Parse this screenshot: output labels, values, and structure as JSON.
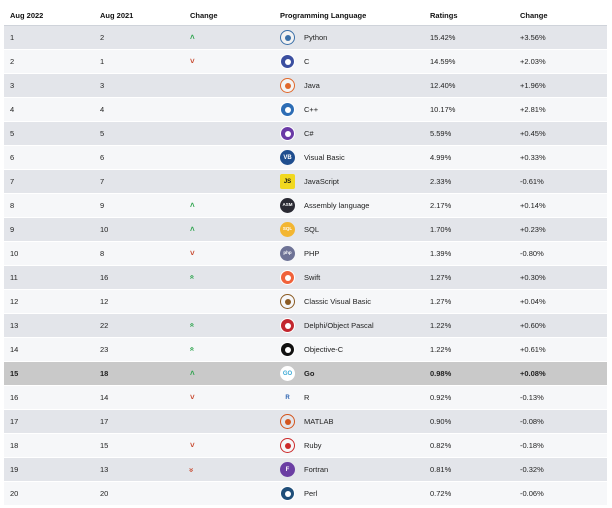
{
  "headers": {
    "aug2022": "Aug 2022",
    "aug2021": "Aug 2021",
    "change": "Change",
    "language": "Programming Language",
    "ratings": "Ratings",
    "change_pct": "Change"
  },
  "rows": [
    {
      "rank2022": "1",
      "rank2021": "2",
      "arrow": "up",
      "language": "Python",
      "rating": "15.42%",
      "delta": "+3.56%",
      "icon": "python-logo-icon",
      "logo_bg": "#f2f2f2",
      "logo_fg": "#3a6fa8",
      "logo_text": ""
    },
    {
      "rank2022": "2",
      "rank2021": "1",
      "arrow": "down",
      "language": "C",
      "rating": "14.59%",
      "delta": "+2.03%",
      "icon": "c-logo-icon",
      "logo_bg": "#3b4fa0",
      "logo_fg": "#ffffff",
      "logo_text": ""
    },
    {
      "rank2022": "3",
      "rank2021": "3",
      "arrow": "",
      "language": "Java",
      "rating": "12.40%",
      "delta": "+1.96%",
      "icon": "java-logo-icon",
      "logo_bg": "#f4f4f4",
      "logo_fg": "#e0682b",
      "logo_text": ""
    },
    {
      "rank2022": "4",
      "rank2021": "4",
      "arrow": "",
      "language": "C++",
      "rating": "10.17%",
      "delta": "+2.81%",
      "icon": "cpp-logo-icon",
      "logo_bg": "#2d6db5",
      "logo_fg": "#ffffff",
      "logo_text": ""
    },
    {
      "rank2022": "5",
      "rank2021": "5",
      "arrow": "",
      "language": "C#",
      "rating": "5.59%",
      "delta": "+0.45%",
      "icon": "csharp-logo-icon",
      "logo_bg": "#6a3aa6",
      "logo_fg": "#ffffff",
      "logo_text": ""
    },
    {
      "rank2022": "6",
      "rank2021": "6",
      "arrow": "",
      "language": "Visual Basic",
      "rating": "4.99%",
      "delta": "+0.33%",
      "icon": "visual-basic-logo-icon",
      "logo_bg": "#1f4e8f",
      "logo_fg": "#ffffff",
      "logo_text": "VB"
    },
    {
      "rank2022": "7",
      "rank2021": "7",
      "arrow": "",
      "language": "JavaScript",
      "rating": "2.33%",
      "delta": "-0.61%",
      "icon": "javascript-logo-icon",
      "logo_bg": "#f1d81f",
      "logo_fg": "#111111",
      "logo_text": "JS"
    },
    {
      "rank2022": "8",
      "rank2021": "9",
      "arrow": "up",
      "language": "Assembly language",
      "rating": "2.17%",
      "delta": "+0.14%",
      "icon": "assembly-logo-icon",
      "logo_bg": "#2a2a33",
      "logo_fg": "#ffffff",
      "logo_text": "ASM"
    },
    {
      "rank2022": "9",
      "rank2021": "10",
      "arrow": "up",
      "language": "SQL",
      "rating": "1.70%",
      "delta": "+0.23%",
      "icon": "sql-logo-icon",
      "logo_bg": "#f3b632",
      "logo_fg": "#ffffff",
      "logo_text": "SQL"
    },
    {
      "rank2022": "10",
      "rank2021": "8",
      "arrow": "down",
      "language": "PHP",
      "rating": "1.39%",
      "delta": "-0.80%",
      "icon": "php-logo-icon",
      "logo_bg": "#6e7396",
      "logo_fg": "#ffffff",
      "logo_text": "php"
    },
    {
      "rank2022": "11",
      "rank2021": "16",
      "arrow": "upup",
      "language": "Swift",
      "rating": "1.27%",
      "delta": "+0.30%",
      "icon": "swift-logo-icon",
      "logo_bg": "#f0623a",
      "logo_fg": "#ffffff",
      "logo_text": ""
    },
    {
      "rank2022": "12",
      "rank2021": "12",
      "arrow": "",
      "language": "Classic Visual Basic",
      "rating": "1.27%",
      "delta": "+0.04%",
      "icon": "classic-visual-basic-logo-icon",
      "logo_bg": "#f6f7f9",
      "logo_fg": "#8a5a22",
      "logo_text": ""
    },
    {
      "rank2022": "13",
      "rank2021": "22",
      "arrow": "upup",
      "language": "Delphi/Object Pascal",
      "rating": "1.22%",
      "delta": "+0.60%",
      "icon": "delphi-logo-icon",
      "logo_bg": "#c2262e",
      "logo_fg": "#ffffff",
      "logo_text": ""
    },
    {
      "rank2022": "14",
      "rank2021": "23",
      "arrow": "upup",
      "language": "Objective-C",
      "rating": "1.22%",
      "delta": "+0.61%",
      "icon": "objective-c-apple-logo-icon",
      "logo_bg": "#111111",
      "logo_fg": "#ffffff",
      "logo_text": ""
    },
    {
      "rank2022": "15",
      "rank2021": "18",
      "arrow": "up",
      "language": "Go",
      "rating": "0.98%",
      "delta": "+0.08%",
      "icon": "go-logo-icon",
      "logo_bg": "#ffffff",
      "logo_fg": "#3aa9d6",
      "logo_text": "GO",
      "highlight": true
    },
    {
      "rank2022": "16",
      "rank2021": "14",
      "arrow": "down",
      "language": "R",
      "rating": "0.92%",
      "delta": "-0.13%",
      "icon": "r-logo-icon",
      "logo_bg": "#f6f7f9",
      "logo_fg": "#2a62b0",
      "logo_text": "R"
    },
    {
      "rank2022": "17",
      "rank2021": "17",
      "arrow": "",
      "language": "MATLAB",
      "rating": "0.90%",
      "delta": "-0.08%",
      "icon": "matlab-logo-icon",
      "logo_bg": "#e3e5ea",
      "logo_fg": "#d3541c",
      "logo_text": ""
    },
    {
      "rank2022": "18",
      "rank2021": "15",
      "arrow": "down",
      "language": "Ruby",
      "rating": "0.82%",
      "delta": "-0.18%",
      "icon": "ruby-logo-icon",
      "logo_bg": "#f6f7f9",
      "logo_fg": "#cc2a2a",
      "logo_text": ""
    },
    {
      "rank2022": "19",
      "rank2021": "13",
      "arrow": "downdown",
      "language": "Fortran",
      "rating": "0.81%",
      "delta": "-0.32%",
      "icon": "fortran-logo-icon",
      "logo_bg": "#6b3ea3",
      "logo_fg": "#ffffff",
      "logo_text": "F"
    },
    {
      "rank2022": "20",
      "rank2021": "20",
      "arrow": "",
      "language": "Perl",
      "rating": "0.72%",
      "delta": "-0.06%",
      "icon": "perl-logo-icon",
      "logo_bg": "#1f4e79",
      "logo_fg": "#ffffff",
      "logo_text": ""
    }
  ]
}
